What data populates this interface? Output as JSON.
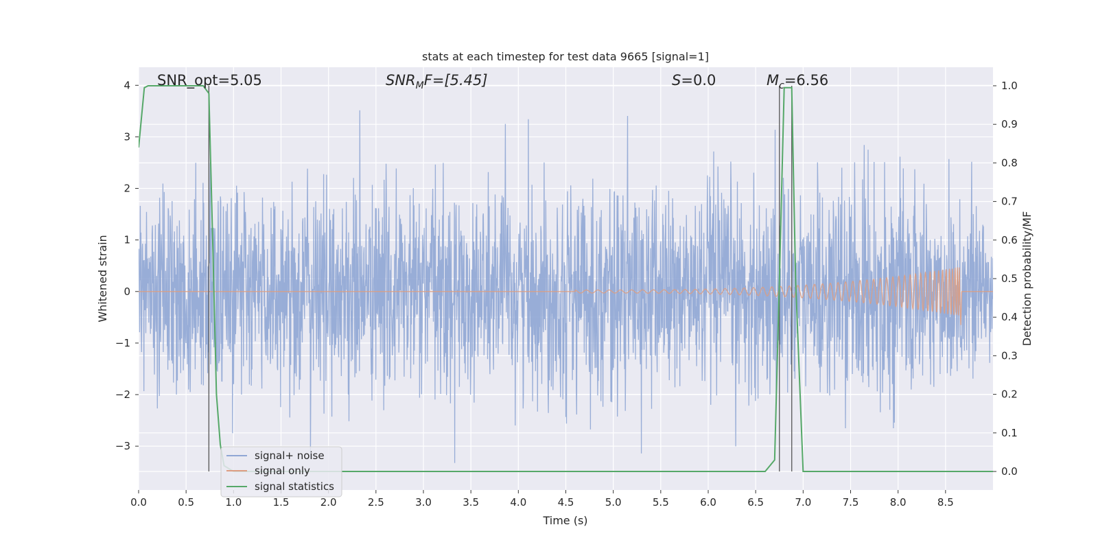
{
  "chart_data": {
    "type": "line",
    "title": "stats at each timestep for test data 9665 [signal=1]",
    "xlabel": "Time (s)",
    "ylabel_left": "Whitened strain",
    "ylabel_right": "Detection probability/MF",
    "xlim": [
      0.0,
      9.0
    ],
    "ylim_left": [
      -3.85,
      4.35
    ],
    "ylim_right": [
      -0.048,
      1.048
    ],
    "x_ticks": [
      "0.0",
      "0.5",
      "1.0",
      "1.5",
      "2.0",
      "2.5",
      "3.0",
      "3.5",
      "4.0",
      "4.5",
      "5.0",
      "5.5",
      "6.0",
      "6.5",
      "7.0",
      "7.5",
      "8.0",
      "8.5"
    ],
    "y_ticks_left": [
      "4",
      "3",
      "2",
      "1",
      "0",
      "−1",
      "−2",
      "−3"
    ],
    "y_ticks_right": [
      "1.0",
      "0.9",
      "0.8",
      "0.7",
      "0.6",
      "0.5",
      "0.4",
      "0.3",
      "0.2",
      "0.1",
      "0.0"
    ],
    "grid": true,
    "legend_position": "lower-left",
    "annotations": {
      "snr_opt": "SNR_opt=5.05",
      "snr_mf_main": "SNR",
      "snr_mf_sub": "M",
      "snr_mf_rest": "F=[5.45]",
      "s_main": "S",
      "s_rest": "=0.0",
      "mc_main": "M",
      "mc_sub": "c",
      "mc_rest": "=6.56"
    },
    "series": [
      {
        "name": "signal+ noise",
        "color": "#8fa6d4",
        "axis": "left",
        "description_values": "white noise, approx range [-3.45, 3.95]",
        "noise_amplitude_typical": 1.0
      },
      {
        "name": "signal only",
        "color": "#dd9d82",
        "axis": "left",
        "x_start": 4.6,
        "x_peak": 8.65,
        "amplitude_at_peak": 0.48
      },
      {
        "name": "signal statistics",
        "color": "#55a868",
        "axis": "right",
        "x": [
          0.0,
          0.06,
          0.1,
          0.2,
          0.3,
          0.4,
          0.5,
          0.6,
          0.68,
          0.74,
          0.78,
          0.82,
          0.86,
          0.9,
          1.0,
          1.2,
          2.0,
          3.0,
          4.0,
          5.0,
          6.0,
          6.6,
          6.7,
          6.75,
          6.8,
          6.84,
          6.88,
          6.92,
          7.0,
          7.5,
          8.0,
          8.5,
          9.0
        ],
        "y": [
          0.84,
          0.995,
          1.0,
          1.0,
          1.0,
          1.0,
          1.0,
          1.0,
          1.0,
          0.98,
          0.6,
          0.2,
          0.07,
          0.015,
          0.0,
          0.0,
          0.0,
          0.0,
          0.0,
          0.0,
          0.0,
          0.0,
          0.03,
          0.5,
          0.995,
          0.995,
          0.995,
          0.5,
          0.0,
          0.0,
          0.0,
          0.0,
          0.0
        ]
      }
    ],
    "vertical_lines": [
      0.74,
      6.75,
      6.88
    ]
  }
}
